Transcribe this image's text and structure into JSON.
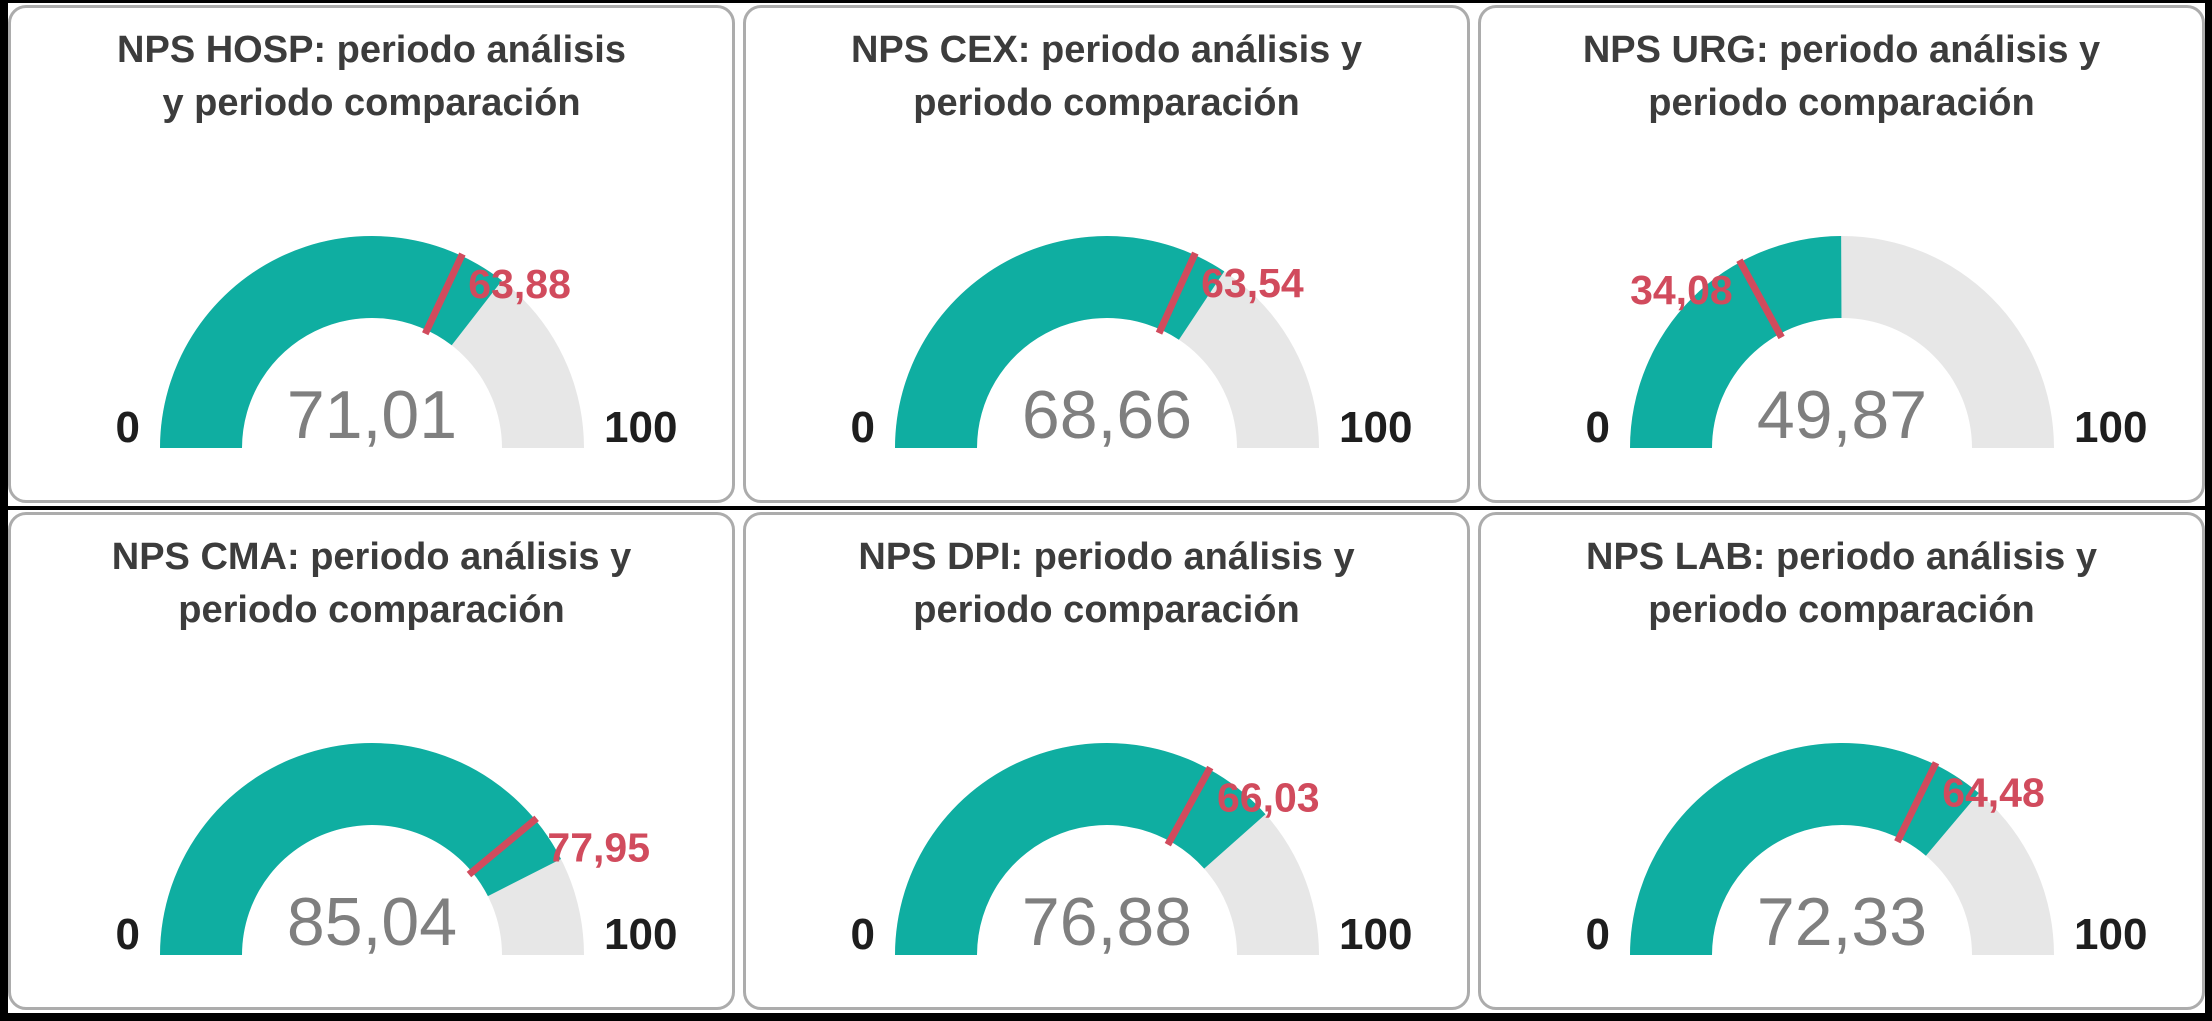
{
  "colors": {
    "frame": "#000000",
    "canvas": "#FFFFFF",
    "card_background": "#FFFFFF",
    "card_border": "#ACACAC",
    "title_text": "#3C3C3C",
    "gauge_fill": "#0FAEA1",
    "gauge_track": "#E7E7E7",
    "target": "#D14B5D",
    "value_text": "#7F7F7F",
    "minmax_text": "#1E1E1E"
  },
  "chart_data": {
    "type": "gauge",
    "layout": "2 rows x 3 columns",
    "axis_min": 0,
    "axis_max": 100,
    "min_label": "0",
    "max_label": "100",
    "gauges": [
      {
        "metric": "NPS HOSP",
        "title_line1": "NPS HOSP: periodo análisis",
        "title_line2": "y periodo comparación",
        "value": 71.01,
        "value_label": "71,01",
        "target": 63.88,
        "target_label": "63,88"
      },
      {
        "metric": "NPS CEX",
        "title_line1": "NPS CEX: periodo análisis y",
        "title_line2": "periodo comparación",
        "value": 68.66,
        "value_label": "68,66",
        "target": 63.54,
        "target_label": "63,54"
      },
      {
        "metric": "NPS URG",
        "title_line1": "NPS URG: periodo análisis y",
        "title_line2": "periodo comparación",
        "value": 49.87,
        "value_label": "49,87",
        "target": 34.08,
        "target_label": "34,08"
      },
      {
        "metric": "NPS CMA",
        "title_line1": "NPS CMA: periodo análisis y",
        "title_line2": "periodo comparación",
        "value": 85.04,
        "value_label": "85,04",
        "target": 77.95,
        "target_label": "77,95"
      },
      {
        "metric": "NPS DPI",
        "title_line1": "NPS DPI: periodo análisis y",
        "title_line2": "periodo comparación",
        "value": 76.88,
        "value_label": "76,88",
        "target": 66.03,
        "target_label": "66,03"
      },
      {
        "metric": "NPS LAB",
        "title_line1": "NPS LAB: periodo análisis y",
        "title_line2": "periodo comparación",
        "value": 72.33,
        "value_label": "72,33",
        "target": 64.48,
        "target_label": "64,48"
      }
    ]
  }
}
